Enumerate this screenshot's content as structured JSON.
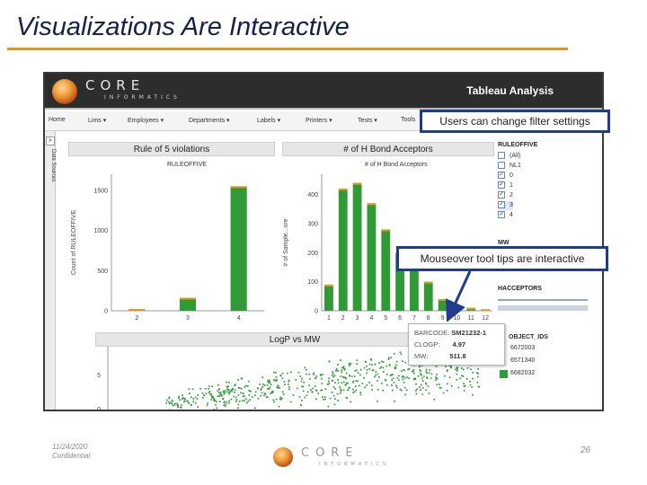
{
  "slide": {
    "title": "Visualizations Are Interactive",
    "accent_color": "#e8941c",
    "footer": {
      "date": "11/24/2020",
      "confidential": "Confidential",
      "page": "26",
      "logo_word": "CORE",
      "logo_sub": "INFORMATICS"
    }
  },
  "app": {
    "logo_word": "CORE",
    "logo_sub": "INFORMATICS",
    "title": "Tableau Analysis",
    "menu": [
      "Home",
      "Lims",
      "Employees",
      "Departments",
      "Labels",
      "Printers",
      "Tests",
      "Tools"
    ],
    "side_toggle": "»",
    "side_label": "Data Sources"
  },
  "callouts": {
    "filter": "Users can change filter settings",
    "tooltip": "Mouseover tool tips are interactive"
  },
  "filters": {
    "rule_title": "RULEOFFIVE",
    "rule_items": [
      {
        "label": "(All)",
        "checked": false
      },
      {
        "label": "NL1",
        "checked": false
      },
      {
        "label": "0",
        "checked": true
      },
      {
        "label": "1",
        "checked": true
      },
      {
        "label": "2",
        "checked": true
      },
      {
        "label": "3",
        "checked": true
      },
      {
        "label": "4",
        "checked": true
      }
    ],
    "mw_title": "MW",
    "hacc_title": "HACCEPTORS",
    "ids_title": "OBJECT_IDS",
    "ids_items": [
      "6672003",
      "6571340",
      "6682032"
    ],
    "series_color": "#2f9a36"
  },
  "tooltip": {
    "barcode_label": "BARCODE:",
    "barcode_value": "SM21232-1",
    "clogp_label": "CLOGP:",
    "clogp_value": "4.97",
    "mw_label": "MW:",
    "mw_value": "511.8"
  },
  "chart_data": [
    {
      "type": "bar",
      "title": "Rule of 5 violations",
      "subtitle": "RULEOFFIVE",
      "ylabel": "Count of RULEOFFIVE",
      "categories": [
        "2",
        "3",
        "4"
      ],
      "values": [
        20,
        160,
        1550
      ],
      "yticks": [
        0,
        500,
        1000,
        1500
      ],
      "ylim": [
        0,
        1700
      ],
      "color": "#2f9a36",
      "top_color": "#e8941c"
    },
    {
      "type": "bar",
      "title": "# of H Bond Acceptors",
      "subtitle": "# of H Bond Acceptors",
      "ylabel": "# of Sample...ore",
      "categories": [
        "1",
        "2",
        "3",
        "4",
        "5",
        "6",
        "7",
        "8",
        "9",
        "10",
        "11",
        "12"
      ],
      "values": [
        90,
        420,
        440,
        370,
        280,
        200,
        150,
        100,
        40,
        20,
        10,
        5
      ],
      "yticks": [
        0,
        100,
        200,
        300,
        400
      ],
      "ylim": [
        0,
        470
      ],
      "color": "#2f9a36",
      "top_color": "#e8941c"
    },
    {
      "type": "scatter",
      "title": "LogP vs MW",
      "yticks": [
        0,
        5
      ],
      "color": "#2f9a36"
    }
  ]
}
